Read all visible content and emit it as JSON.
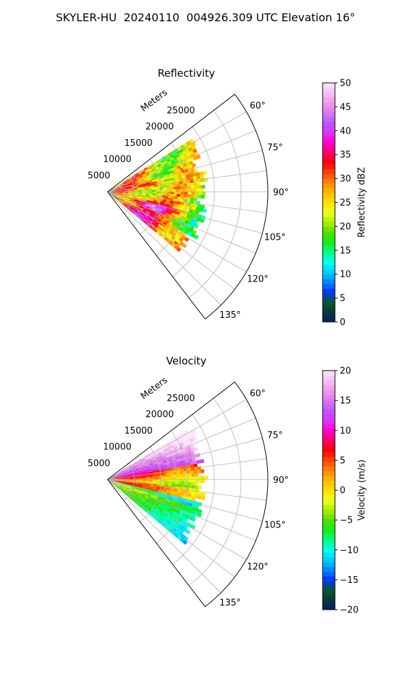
{
  "title": "SKYLER-HU  20240110  004926.309 UTC Elevation 16°",
  "chart_data": [
    {
      "type": "heatmap",
      "title": "Reflectivity",
      "radial_axis_label": "Meters",
      "radial_ticks": [
        5000,
        10000,
        15000,
        20000,
        25000
      ],
      "radial_tick_labels": [
        "5000",
        "10000",
        "15000",
        "20000",
        "25000"
      ],
      "azimuth_ticks": [
        60,
        75,
        90,
        105,
        120,
        135
      ],
      "azimuth_tick_labels": [
        "60°",
        "75°",
        "90°",
        "105°",
        "120°",
        "135°"
      ],
      "azimuth_range": [
        52.5,
        142.5
      ],
      "range_max": 30000,
      "data_sector_azimuth": [
        58,
        130
      ],
      "data_range_max": 19000,
      "grid": true,
      "colorbar": {
        "label": "Reflectivity dBZ",
        "min": 0,
        "max": 50,
        "ticks": [
          0,
          5,
          10,
          15,
          20,
          25,
          30,
          35,
          40,
          45,
          50
        ],
        "tick_labels": [
          "0",
          "5",
          "10",
          "15",
          "20",
          "25",
          "30",
          "35",
          "40",
          "45",
          "50"
        ],
        "colors": [
          "#0a1a6e",
          "#073a34",
          "#055a2a",
          "#0033ff",
          "#0088ff",
          "#00ccff",
          "#00ffee",
          "#00ff88",
          "#11ee11",
          "#55dd00",
          "#aaee00",
          "#eeff22",
          "#ffe000",
          "#ffbb00",
          "#ff8800",
          "#ff4400",
          "#ff0000",
          "#ff0066",
          "#ff00cc",
          "#dd33ff",
          "#bb55ff",
          "#dd77ee",
          "#ee99ee",
          "#f5c0f5",
          "#fbe6fb"
        ]
      }
    },
    {
      "type": "heatmap",
      "title": "Velocity",
      "radial_axis_label": "Meters",
      "radial_ticks": [
        5000,
        10000,
        15000,
        20000,
        25000
      ],
      "radial_tick_labels": [
        "5000",
        "10000",
        "15000",
        "20000",
        "25000"
      ],
      "azimuth_ticks": [
        60,
        75,
        90,
        105,
        120,
        135
      ],
      "azimuth_tick_labels": [
        "60°",
        "75°",
        "90°",
        "105°",
        "120°",
        "135°"
      ],
      "azimuth_range": [
        52.5,
        142.5
      ],
      "range_max": 30000,
      "data_sector_azimuth": [
        58,
        130
      ],
      "data_range_max": 19000,
      "grid": true,
      "colorbar": {
        "label": "Velocity (m/s)",
        "min": -20,
        "max": 20,
        "ticks": [
          -20,
          -15,
          -10,
          -5,
          0,
          5,
          10,
          15,
          20
        ],
        "tick_labels": [
          "−20",
          "−15",
          "−10",
          "−5",
          "0",
          "5",
          "10",
          "15",
          "20"
        ],
        "colors": [
          "#0a1a6e",
          "#073a34",
          "#055a2a",
          "#0033ff",
          "#0088ff",
          "#00ccff",
          "#00ffee",
          "#00ff88",
          "#11ee11",
          "#55dd00",
          "#aaee00",
          "#eeff22",
          "#ffe000",
          "#ffbb00",
          "#ff8800",
          "#ff4400",
          "#ff0000",
          "#ff0066",
          "#ff00cc",
          "#dd33ff",
          "#bb55ff",
          "#dd77ee",
          "#ee99ee",
          "#f5c0f5",
          "#fbe6fb"
        ]
      }
    }
  ]
}
